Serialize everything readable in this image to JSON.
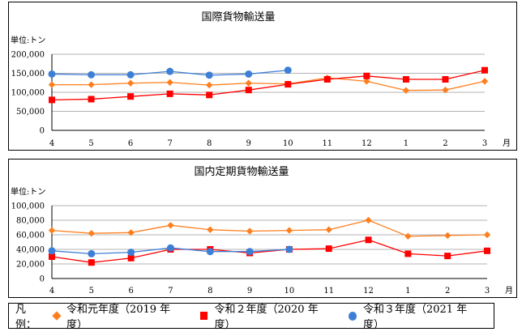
{
  "legend": {
    "label": "凡例：",
    "items": [
      {
        "name": "令和元年度（2019 年度）",
        "color": "#FF7F1F",
        "marker": "diamond"
      },
      {
        "name": "令和２年度（2020 年度）",
        "color": "#FF0000",
        "marker": "square"
      },
      {
        "name": "令和３年度（2021 年度）",
        "color": "#3E7FD6",
        "marker": "circle"
      }
    ]
  },
  "chart_data": [
    {
      "type": "line",
      "title": "国際貨物輸送量",
      "ylabel": "単位:トン",
      "xlabel": "月",
      "categories": [
        "4",
        "5",
        "6",
        "7",
        "8",
        "9",
        "10",
        "11",
        "12",
        "1",
        "2",
        "3"
      ],
      "ylim": [
        0,
        200000
      ],
      "yticks": [
        "0",
        "50,000",
        "100,000",
        "150,000",
        "200,000"
      ],
      "ytick_values": [
        0,
        50000,
        100000,
        150000,
        200000
      ],
      "grid": true,
      "series": [
        {
          "name": "令和元年度（2019 年度）",
          "color": "#FF7F1F",
          "marker": "diamond",
          "values": [
            120000,
            120000,
            124000,
            126000,
            119000,
            124000,
            122000,
            138000,
            129000,
            105000,
            106000,
            129000
          ]
        },
        {
          "name": "令和２年度（2020 年度）",
          "color": "#FF0000",
          "marker": "square",
          "values": [
            80000,
            82000,
            89000,
            96000,
            93000,
            106000,
            121000,
            134000,
            143000,
            134000,
            134000,
            158000
          ]
        },
        {
          "name": "令和３年度（2021 年度）",
          "color": "#3E7FD6",
          "marker": "circle",
          "values": [
            148000,
            146000,
            146000,
            155000,
            145000,
            148000,
            158000,
            null,
            null,
            null,
            null,
            null
          ]
        }
      ]
    },
    {
      "type": "line",
      "title": "国内定期貨物輸送量",
      "ylabel": "単位:トン",
      "xlabel": "月",
      "categories": [
        "4",
        "5",
        "6",
        "7",
        "8",
        "9",
        "10",
        "11",
        "12",
        "1",
        "2",
        "3"
      ],
      "ylim": [
        0,
        100000
      ],
      "yticks": [
        "0",
        "20,000",
        "40,000",
        "60,000",
        "80,000",
        "100,000"
      ],
      "ytick_values": [
        0,
        20000,
        40000,
        60000,
        80000,
        100000
      ],
      "grid": true,
      "series": [
        {
          "name": "令和元年度（2019 年度）",
          "color": "#FF7F1F",
          "marker": "diamond",
          "values": [
            66000,
            62000,
            63000,
            73000,
            67000,
            65000,
            66000,
            67000,
            80000,
            58000,
            59000,
            60000
          ]
        },
        {
          "name": "令和２年度（2020 年度）",
          "color": "#FF0000",
          "marker": "square",
          "values": [
            30000,
            22000,
            28000,
            40000,
            40000,
            35000,
            40000,
            41000,
            53000,
            34000,
            31000,
            38000
          ]
        },
        {
          "name": "令和３年度（2021 年度）",
          "color": "#3E7FD6",
          "marker": "circle",
          "values": [
            38000,
            34000,
            36000,
            42000,
            37000,
            37000,
            40000,
            null,
            null,
            null,
            null,
            null
          ]
        }
      ]
    }
  ]
}
